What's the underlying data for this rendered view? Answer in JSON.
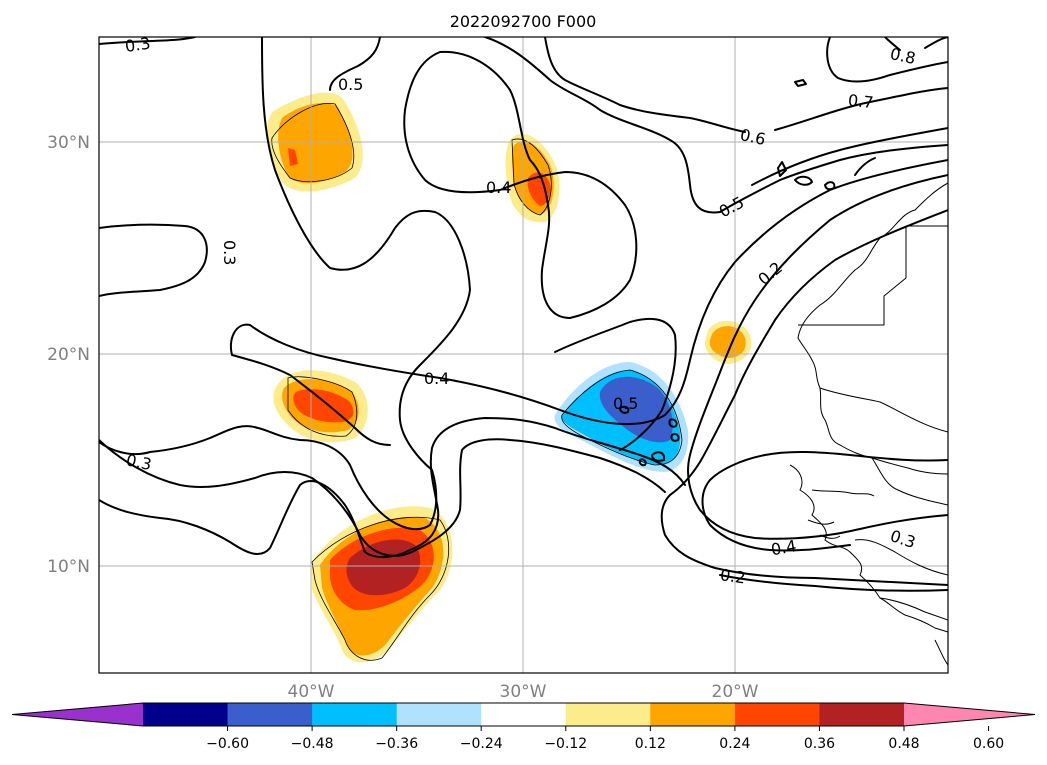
{
  "title": "2022092700 F000",
  "map": {
    "lat_range": [
      5,
      35
    ],
    "lon_range": [
      -50,
      -10
    ],
    "lat_ticks": [
      {
        "value": 10,
        "label": "10°N"
      },
      {
        "value": 20,
        "label": "20°N"
      },
      {
        "value": 30,
        "label": "30°N"
      }
    ],
    "lon_ticks": [
      {
        "value": -40,
        "label": "40°W"
      },
      {
        "value": -30,
        "label": "30°W"
      },
      {
        "value": -20,
        "label": "20°W"
      }
    ],
    "contour_labels": [
      "0.3",
      "0.5",
      "0.4",
      "0.6",
      "0.7",
      "0.8",
      "0.5",
      "0.3",
      "0.2",
      "0.4",
      "0.5",
      "0.3",
      "0.4",
      "0.3",
      "0.2"
    ]
  },
  "colorbar": {
    "colors": [
      "#9932cc",
      "#00008b",
      "#3a5fcd",
      "#00bfff",
      "#b0e2ff",
      "#ffffff",
      "#fcec8c",
      "#ffa500",
      "#ff4500",
      "#b22222",
      "#ff86b0"
    ],
    "tick_labels": [
      "−0.60",
      "−0.48",
      "−0.36",
      "−0.24",
      "−0.12",
      "0.12",
      "0.24",
      "0.36",
      "0.48",
      "0.60"
    ]
  }
}
